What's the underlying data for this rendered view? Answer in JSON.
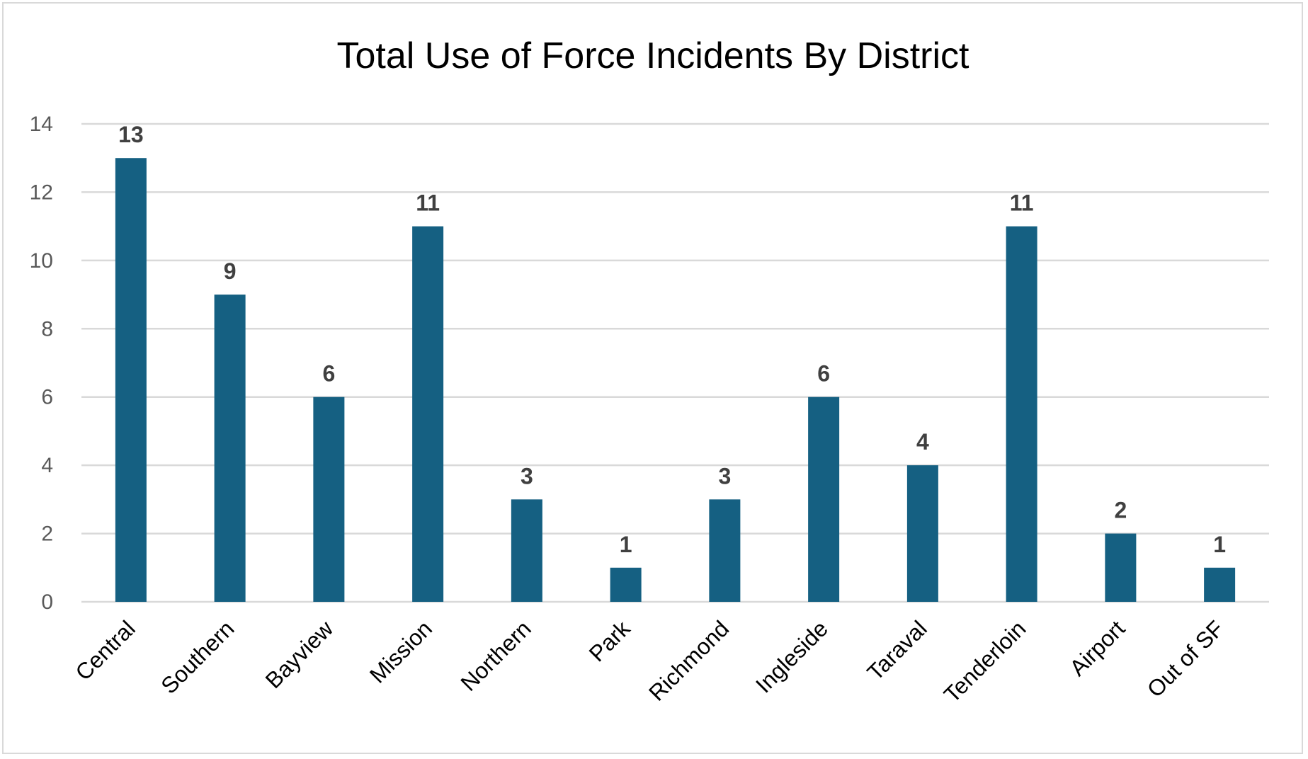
{
  "chart_data": {
    "type": "bar",
    "title": "Total Use of Force Incidents By District",
    "xlabel": "",
    "ylabel": "",
    "categories": [
      "Central",
      "Southern",
      "Bayview",
      "Mission",
      "Northern",
      "Park",
      "Richmond",
      "Ingleside",
      "Taraval",
      "Tenderloin",
      "Airport",
      "Out of SF"
    ],
    "values": [
      13,
      9,
      6,
      11,
      3,
      1,
      3,
      6,
      4,
      11,
      2,
      1
    ],
    "ylim": [
      0,
      14
    ],
    "yticks": [
      0,
      2,
      4,
      6,
      8,
      10,
      12,
      14
    ],
    "grid": true,
    "data_labels": true,
    "legend": "none",
    "colors": {
      "bar": "#156082",
      "grid": "#d9d9d9"
    }
  }
}
